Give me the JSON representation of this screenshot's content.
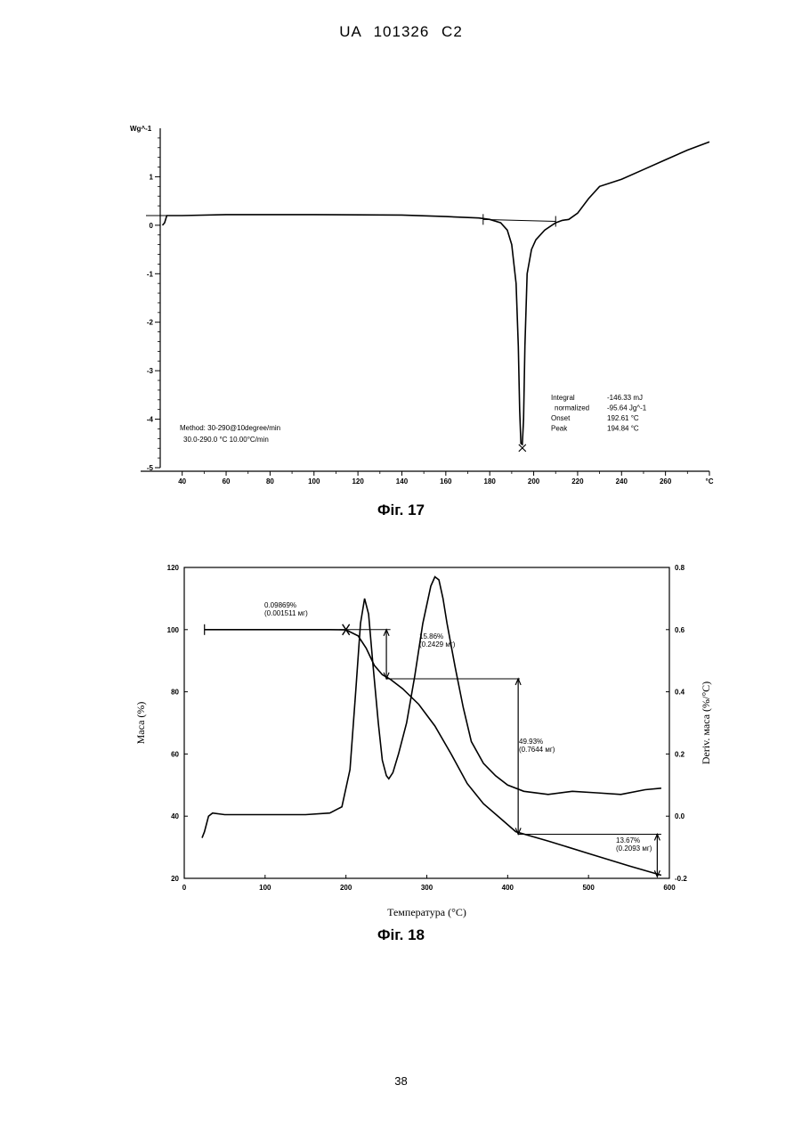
{
  "header": {
    "text": "UA 101326 C2"
  },
  "figure17": {
    "caption": "Фіг. 17",
    "method_text": [
      "Method: 30-290@10degree/min",
      "30.0-290.0 °C 10.00°C/min"
    ],
    "results": [
      {
        "label": "Integral",
        "value": "-146.33 mJ"
      },
      {
        "label": "normalized",
        "value": "-95.64 Jg^-1"
      },
      {
        "label": "Onset",
        "value": "192.61 °C"
      },
      {
        "label": "Peak",
        "value": "194.84 °C"
      }
    ]
  },
  "figure18": {
    "caption": "Фіг. 18",
    "annotations": [
      {
        "text": [
          "0.09869%",
          "(0.001511 мг)"
        ]
      },
      {
        "text": [
          "15.86%",
          "(0.2429 мг)"
        ]
      },
      {
        "text": [
          "49.93%",
          "(0.7644 мг)"
        ]
      },
      {
        "text": [
          "13.67%",
          "(0.2093 мг)"
        ]
      }
    ]
  },
  "page_number": "38",
  "chart_data": [
    {
      "type": "line",
      "title": "",
      "ylabel": "Wg^-1",
      "xlabel": "°C",
      "xlim": [
        30,
        280
      ],
      "ylim": [
        -5,
        2
      ],
      "x_ticks": [
        "40",
        "60",
        "80",
        "100",
        "120",
        "140",
        "160",
        "180",
        "200",
        "220",
        "240",
        "260",
        "°C"
      ],
      "y_ticks": [
        "1",
        "0",
        "-1",
        "-2",
        "-3",
        "-4",
        "-5"
      ],
      "series": [
        {
          "x": [
            31,
            32,
            33,
            35,
            40,
            60,
            100,
            140,
            160,
            175,
            180,
            185,
            188,
            190,
            192,
            193,
            193.6,
            194.2,
            194.84,
            195.4,
            196,
            197,
            199,
            201,
            205,
            210,
            213,
            216,
            220,
            225,
            230,
            240,
            250,
            260,
            270,
            280
          ],
          "y": [
            0.0,
            0.05,
            0.2,
            0.2,
            0.2,
            0.22,
            0.22,
            0.21,
            0.18,
            0.15,
            0.12,
            0.05,
            -0.1,
            -0.4,
            -1.2,
            -2.5,
            -3.8,
            -4.5,
            -4.52,
            -4.0,
            -2.5,
            -1.0,
            -0.5,
            -0.3,
            -0.1,
            0.05,
            0.1,
            0.12,
            0.25,
            0.55,
            0.8,
            0.95,
            1.15,
            1.35,
            1.55,
            1.72
          ]
        }
      ],
      "baseline": {
        "x": [
          177,
          210
        ],
        "y": [
          0.12,
          0.08
        ]
      }
    },
    {
      "type": "line",
      "title": "",
      "xlabel": "Температура (°C)",
      "ylabel": "Маса (%)",
      "y2label": "Deriv. маса (%/°C)",
      "xlim": [
        0,
        600
      ],
      "ylim": [
        20,
        120
      ],
      "y2lim": [
        -0.2,
        0.8
      ],
      "x_ticks": [
        "0",
        "100",
        "200",
        "300",
        "400",
        "500",
        "600"
      ],
      "y_ticks": [
        "120",
        "100",
        "80",
        "60",
        "40",
        "20"
      ],
      "y2_ticks": [
        "0.8",
        "0.6",
        "0.4",
        "0.2",
        "0.0",
        "-0.2"
      ],
      "series": [
        {
          "name": "Маса",
          "axis": "left",
          "x": [
            25,
            50,
            100,
            150,
            180,
            200,
            215,
            225,
            235,
            245,
            255,
            270,
            290,
            310,
            330,
            350,
            370,
            390,
            410,
            450,
            500,
            550,
            590
          ],
          "y": [
            100,
            100,
            100,
            100,
            100,
            99.9,
            98,
            94,
            88.5,
            85.5,
            84,
            81,
            76,
            69,
            60,
            50.5,
            44,
            39.5,
            35,
            32,
            28,
            24,
            21
          ]
        },
        {
          "name": "Deriv. маса",
          "axis": "right",
          "x": [
            22,
            25,
            30,
            35,
            50,
            100,
            150,
            180,
            195,
            205,
            212,
            218,
            223,
            228,
            233,
            240,
            245,
            250,
            253,
            258,
            265,
            275,
            285,
            295,
            305,
            310,
            315,
            320,
            325,
            335,
            345,
            355,
            370,
            385,
            400,
            420,
            450,
            480,
            510,
            540,
            570,
            590
          ],
          "y": [
            -0.07,
            -0.05,
            0.0,
            0.01,
            0.005,
            0.005,
            0.005,
            0.01,
            0.03,
            0.15,
            0.4,
            0.62,
            0.7,
            0.65,
            0.5,
            0.3,
            0.18,
            0.13,
            0.12,
            0.14,
            0.2,
            0.3,
            0.45,
            0.62,
            0.74,
            0.77,
            0.76,
            0.7,
            0.62,
            0.48,
            0.35,
            0.24,
            0.17,
            0.13,
            0.1,
            0.08,
            0.07,
            0.08,
            0.075,
            0.07,
            0.085,
            0.09
          ]
        }
      ],
      "step_markers": [
        {
          "x_from": 25,
          "x_to": 200,
          "mass": 100
        },
        {
          "x_from": 200,
          "x_to": 255,
          "mass_from": 100,
          "mass_to": 84.2
        },
        {
          "x_from": 255,
          "x_to": 415,
          "mass_from": 84.2,
          "mass_to": 34.2
        },
        {
          "x_from": 415,
          "x_to": 590,
          "mass_from": 34.2,
          "mass_to": 20.5
        }
      ]
    }
  ]
}
